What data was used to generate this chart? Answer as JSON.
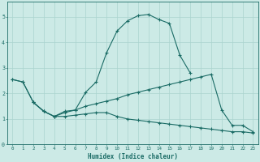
{
  "xlabel": "Humidex (Indice chaleur)",
  "bg_color": "#cceae6",
  "grid_color": "#aad4cf",
  "line_color": "#1a6b65",
  "xlim": [
    -0.5,
    23.5
  ],
  "ylim": [
    0,
    5.6
  ],
  "yticks": [
    0,
    1,
    2,
    3,
    4,
    5
  ],
  "xticks": [
    0,
    1,
    2,
    3,
    4,
    5,
    6,
    7,
    8,
    9,
    10,
    11,
    12,
    13,
    14,
    15,
    16,
    17,
    18,
    19,
    20,
    21,
    22,
    23
  ],
  "line1_x": [
    0,
    1,
    2,
    3,
    4,
    5,
    6,
    7,
    8,
    9,
    10,
    11,
    12,
    13,
    14,
    15,
    16,
    17
  ],
  "line1_y": [
    2.55,
    2.45,
    1.65,
    1.3,
    1.1,
    1.3,
    1.35,
    2.05,
    2.45,
    3.6,
    4.45,
    4.85,
    5.05,
    5.1,
    4.9,
    4.75,
    3.5,
    2.8
  ],
  "line2_x": [
    0,
    1,
    2,
    3,
    4,
    5,
    6,
    7,
    8,
    9,
    10,
    11,
    12,
    13,
    14,
    15,
    16,
    17,
    18,
    19,
    20,
    21,
    22,
    23
  ],
  "line2_y": [
    2.55,
    2.45,
    1.65,
    1.3,
    1.1,
    1.25,
    1.35,
    1.5,
    1.6,
    1.7,
    1.8,
    1.95,
    2.05,
    2.15,
    2.25,
    2.35,
    2.45,
    2.55,
    2.65,
    2.75,
    1.35,
    0.75,
    0.75,
    0.5
  ],
  "line3_x": [
    2,
    3,
    4,
    5,
    6,
    7,
    8,
    9,
    10,
    11,
    12,
    13,
    14,
    15,
    16,
    17,
    18,
    19,
    20,
    21,
    22,
    23
  ],
  "line3_y": [
    1.65,
    1.3,
    1.1,
    1.1,
    1.15,
    1.2,
    1.25,
    1.25,
    1.1,
    1.0,
    0.95,
    0.9,
    0.85,
    0.8,
    0.75,
    0.7,
    0.65,
    0.6,
    0.55,
    0.5,
    0.5,
    0.45
  ]
}
